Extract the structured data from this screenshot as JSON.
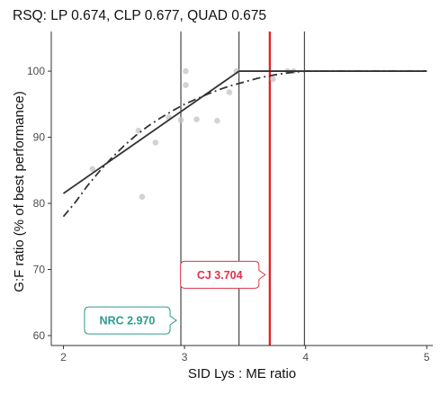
{
  "chart_data": {
    "type": "scatter",
    "title": "RSQ: LP 0.674, CLP 0.677, QUAD 0.675",
    "xlabel": "SID Lys : ME ratio",
    "ylabel": "G:F ratio (% of best performance)",
    "xlim": [
      1.9,
      5.05
    ],
    "ylim": [
      58.5,
      106
    ],
    "x_ticks": [
      2,
      3,
      4,
      5
    ],
    "x_tick_labels": [
      "2",
      "3",
      "4",
      "5"
    ],
    "y_ticks": [
      60,
      70,
      80,
      90,
      100
    ],
    "y_tick_labels": [
      "60",
      "70",
      "80",
      "90",
      "100"
    ],
    "grid": false,
    "points": [
      {
        "x": 2.24,
        "y": 85.2
      },
      {
        "x": 2.62,
        "y": 91.0
      },
      {
        "x": 2.65,
        "y": 81.0
      },
      {
        "x": 2.76,
        "y": 89.2
      },
      {
        "x": 2.87,
        "y": 93.0
      },
      {
        "x": 2.97,
        "y": 92.6
      },
      {
        "x": 3.01,
        "y": 100.0
      },
      {
        "x": 3.01,
        "y": 97.9
      },
      {
        "x": 3.1,
        "y": 92.7
      },
      {
        "x": 3.27,
        "y": 92.5
      },
      {
        "x": 3.37,
        "y": 96.8
      },
      {
        "x": 3.43,
        "y": 100.0
      },
      {
        "x": 3.73,
        "y": 98.8
      },
      {
        "x": 3.85,
        "y": 100.0
      },
      {
        "x": 3.9,
        "y": 100.0
      }
    ],
    "lines": [
      {
        "style": "solid",
        "points": [
          [
            2,
            81.5
          ],
          [
            3.45,
            100
          ],
          [
            5,
            100
          ]
        ]
      },
      {
        "style": "dashdot",
        "points": [
          [
            2,
            78.0
          ],
          [
            2.1,
            80.2
          ],
          [
            2.2,
            82.7
          ],
          [
            2.3,
            84.9
          ],
          [
            2.4,
            86.9
          ],
          [
            2.5,
            88.7
          ],
          [
            2.6,
            90.3
          ],
          [
            2.7,
            91.7
          ],
          [
            2.8,
            92.9
          ],
          [
            2.9,
            94.0
          ],
          [
            3.0,
            95.0
          ],
          [
            3.1,
            95.8
          ],
          [
            3.2,
            96.6
          ],
          [
            3.3,
            97.3
          ],
          [
            3.4,
            97.9
          ],
          [
            3.5,
            98.4
          ],
          [
            3.6,
            98.9
          ],
          [
            3.7,
            99.3
          ],
          [
            3.8,
            99.6
          ],
          [
            3.9,
            99.85
          ],
          [
            4.0,
            100
          ],
          [
            5.0,
            100
          ]
        ]
      }
    ],
    "vlines": [
      {
        "x": 2.97,
        "color": "#222222",
        "width": 1
      },
      {
        "x": 3.45,
        "color": "#222222",
        "width": 1
      },
      {
        "x": 3.704,
        "color": "#e8171c",
        "width": 2.2
      },
      {
        "x": 3.99,
        "color": "#222222",
        "width": 1
      }
    ],
    "annotations": [
      {
        "text": "CJ 3.704",
        "x": 3.704,
        "y": 69.2,
        "color": "#e1324a",
        "side": "left"
      },
      {
        "text": "NRC 2.970",
        "x": 2.97,
        "y": 62.3,
        "color": "#2a9d8f",
        "side": "left"
      }
    ]
  }
}
